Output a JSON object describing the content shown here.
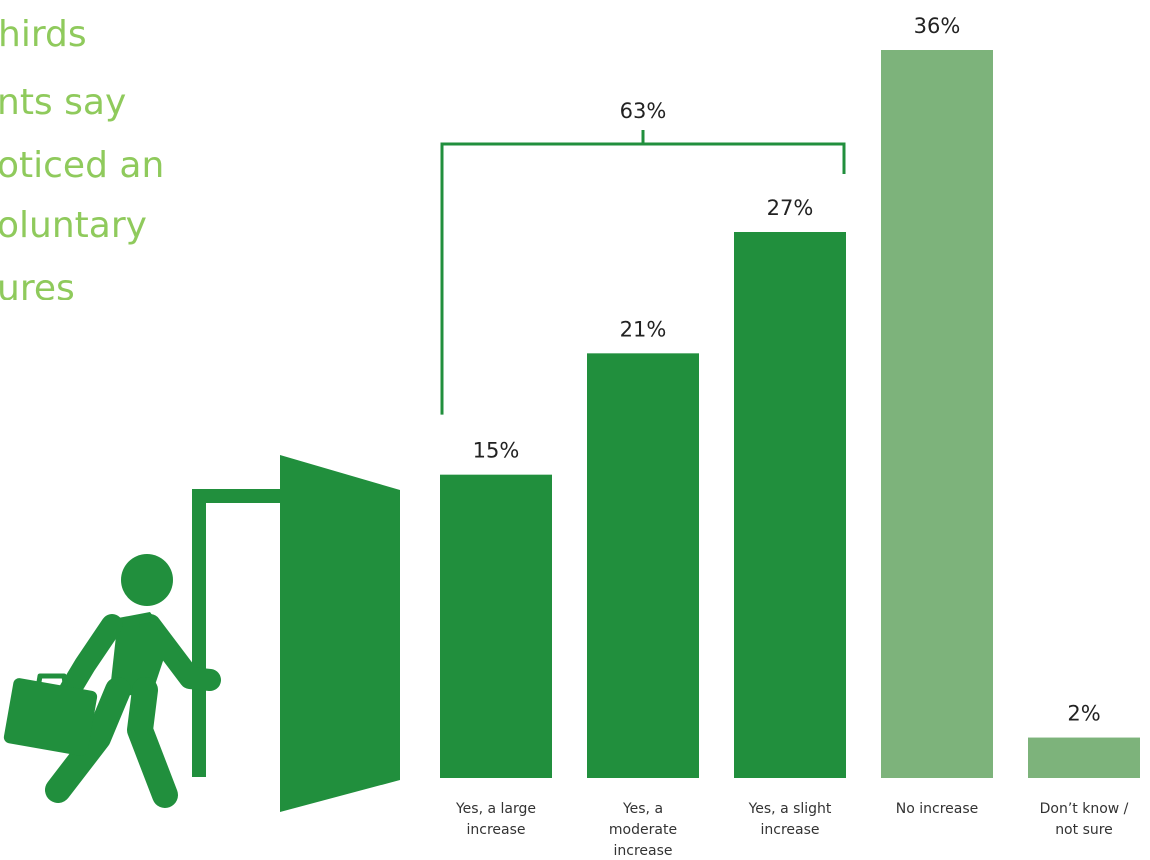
{
  "headline": {
    "lines": [
      "hirds",
      "nts say",
      "oticed an",
      "oluntary",
      "ures"
    ]
  },
  "icons": {
    "person": "person-walking-out-door-icon",
    "briefcase": "briefcase-icon",
    "door": "open-door-icon"
  },
  "colors": {
    "yes_bars": "#218f3d",
    "other_bars": "#7db37b",
    "headline": "#8fca5c",
    "text": "#222222"
  },
  "chart_data": {
    "type": "bar",
    "categories": [
      [
        "Yes, a large",
        "increase"
      ],
      [
        "Yes, a",
        "moderate",
        "increase"
      ],
      [
        "Yes, a slight",
        "increase"
      ],
      [
        "No increase"
      ],
      [
        "Don’t know /",
        "not sure"
      ]
    ],
    "values": [
      15,
      21,
      27,
      36,
      2
    ],
    "value_labels": [
      "15%",
      "21%",
      "27%",
      "36%",
      "2%"
    ],
    "bar_colors": [
      "#218f3d",
      "#218f3d",
      "#218f3d",
      "#7db37b",
      "#7db37b"
    ],
    "bracket": {
      "label": "63%",
      "from_category": 0,
      "to_category": 2
    },
    "ylim": [
      0,
      36
    ],
    "grid": false,
    "legend": "none"
  }
}
